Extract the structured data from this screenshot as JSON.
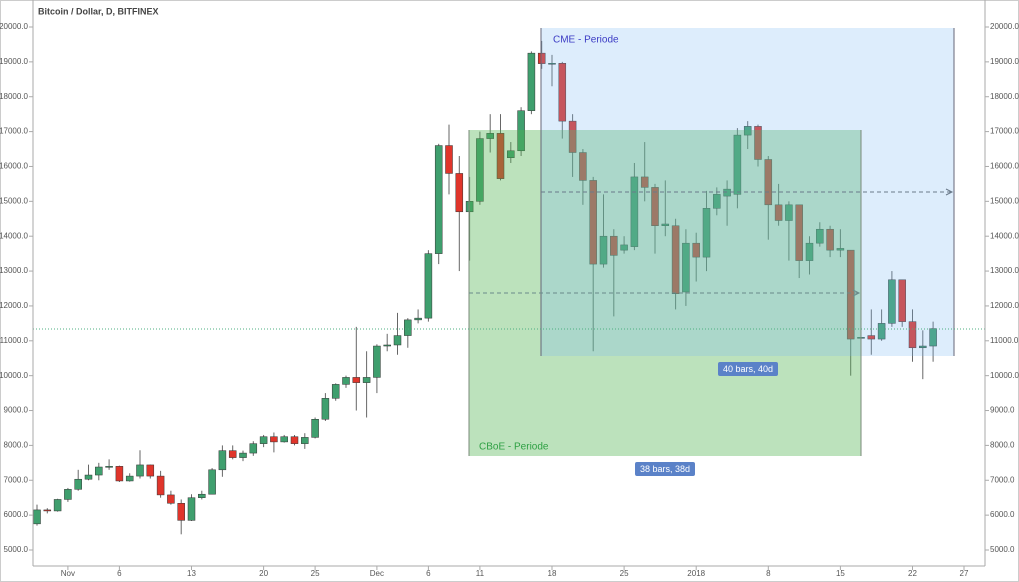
{
  "chart_data": {
    "type": "candlestick",
    "title": "Bitcoin / Dollar, D, BITFINEX",
    "up_color": "#3f9f6e",
    "down_color": "#e0352b",
    "categories": [
      null,
      null,
      null,
      "Nov",
      null,
      null,
      null,
      null,
      "6",
      null,
      null,
      null,
      null,
      null,
      null,
      "13",
      null,
      null,
      null,
      null,
      null,
      null,
      "20",
      null,
      null,
      null,
      null,
      "25",
      null,
      null,
      null,
      null,
      null,
      "Dec",
      null,
      null,
      null,
      null,
      "6",
      null,
      null,
      null,
      null,
      "11",
      null,
      null,
      null,
      null,
      null,
      null,
      "18",
      null,
      null,
      null,
      null,
      null,
      null,
      "25",
      null,
      null,
      null,
      null,
      null,
      null,
      "2018",
      null,
      null,
      null,
      null,
      null,
      null,
      "8",
      null,
      null,
      null,
      null,
      null,
      null,
      "15",
      null,
      null,
      null,
      null,
      null,
      null,
      "22",
      null,
      null,
      null,
      null,
      "27"
    ],
    "open": [
      5750,
      6150,
      6120,
      6450,
      6740,
      7030,
      7150,
      7380,
      7400,
      6980,
      7120,
      7440,
      7120,
      6580,
      6340,
      5850,
      6500,
      6600,
      7300,
      7850,
      7650,
      7780,
      8050,
      8250,
      8100,
      8250,
      8050,
      8230,
      8750,
      9350,
      9750,
      9950,
      9800,
      9950,
      10850,
      10880,
      11150,
      11600,
      11650,
      13500,
      16600,
      15800,
      14700,
      15000,
      16800,
      16950,
      16250,
      16450,
      17600,
      19250,
      18950,
      18960,
      17300,
      16400,
      15600,
      13200,
      14000,
      13600,
      13700,
      15700,
      15400,
      14300,
      14300,
      12400,
      13800,
      13400,
      14800,
      15150,
      15200,
      16900,
      17150,
      16200,
      14900,
      14450,
      14900,
      13300,
      13800,
      14200,
      13600,
      13600,
      11100,
      11150,
      11050,
      11500,
      12750,
      11550,
      10800,
      10850,
      null,
      null,
      null
    ],
    "high": [
      6300,
      6200,
      6470,
      6780,
      7300,
      7450,
      7500,
      7600,
      7420,
      7200,
      7860,
      7450,
      7270,
      6700,
      6450,
      6600,
      6700,
      7350,
      8000,
      8000,
      7850,
      8120,
      8300,
      8370,
      8300,
      8300,
      8350,
      8800,
      9500,
      9780,
      10000,
      11400,
      10700,
      10900,
      11200,
      11800,
      11650,
      11900,
      13600,
      16650,
      17200,
      16300,
      15700,
      17000,
      17500,
      17500,
      16700,
      17700,
      19300,
      19600,
      19200,
      19000,
      17500,
      16500,
      15700,
      15200,
      14200,
      14000,
      16100,
      16700,
      15500,
      15600,
      14500,
      14200,
      14100,
      15300,
      15400,
      15600,
      17100,
      17300,
      17200,
      16300,
      15500,
      15000,
      14900,
      14000,
      14400,
      14300,
      14200,
      13600,
      11500,
      11900,
      11900,
      13000,
      12750,
      11900,
      11300,
      11550,
      null,
      null,
      null
    ],
    "low": [
      5700,
      6050,
      6100,
      6380,
      6700,
      7000,
      7000,
      7300,
      6950,
      6960,
      7050,
      7050,
      6500,
      6300,
      5450,
      5830,
      6450,
      6600,
      7100,
      7600,
      7550,
      7700,
      7950,
      7800,
      8080,
      8000,
      7900,
      8200,
      8700,
      9280,
      9650,
      9000,
      8800,
      9500,
      10700,
      10600,
      10800,
      11500,
      11550,
      13200,
      15200,
      13000,
      13300,
      14900,
      16400,
      15600,
      16100,
      16300,
      17500,
      18800,
      18300,
      16800,
      15700,
      14900,
      10700,
      13100,
      11700,
      13500,
      13600,
      15000,
      13500,
      14000,
      11900,
      12000,
      12700,
      13000,
      14600,
      14300,
      14800,
      16500,
      16000,
      13900,
      14300,
      13300,
      12800,
      12900,
      13700,
      13400,
      13400,
      10000,
      10400,
      10600,
      11000,
      11400,
      11400,
      10400,
      9900,
      10400,
      null,
      null,
      null
    ],
    "close": [
      6150,
      6120,
      6450,
      6740,
      7030,
      7150,
      7380,
      7400,
      6980,
      7120,
      7440,
      7120,
      6580,
      6340,
      5850,
      6500,
      6600,
      7300,
      7850,
      7650,
      7780,
      8050,
      8250,
      8100,
      8250,
      8050,
      8230,
      8750,
      9350,
      9750,
      9950,
      9800,
      9950,
      10850,
      10880,
      11150,
      11600,
      11650,
      13500,
      16600,
      15800,
      14700,
      15000,
      16800,
      16950,
      15650,
      16450,
      17600,
      19250,
      18950,
      18960,
      17300,
      16400,
      15600,
      13200,
      14000,
      13450,
      13750,
      15700,
      15400,
      14300,
      14350,
      12350,
      13800,
      13400,
      14800,
      15200,
      15350,
      16900,
      17150,
      16200,
      14900,
      14450,
      14900,
      13300,
      13800,
      14200,
      13600,
      13650,
      11050,
      11100,
      11050,
      11500,
      12750,
      11550,
      10800,
      10850,
      11350,
      null,
      null,
      null
    ],
    "ylim": [
      5000,
      20000
    ],
    "yticks": [
      {
        "value": 5000,
        "label": "5000.0"
      },
      {
        "value": 6000,
        "label": "6000.0"
      },
      {
        "value": 7000,
        "label": "7000.0"
      },
      {
        "value": 8000,
        "label": "8000.0"
      },
      {
        "value": 9000,
        "label": "9000.0"
      },
      {
        "value": 10000,
        "label": "10000.0"
      },
      {
        "value": 11000,
        "label": "11000.0"
      },
      {
        "value": 12000,
        "label": "12000.0"
      },
      {
        "value": 13000,
        "label": "13000.0"
      },
      {
        "value": 14000,
        "label": "14000.0"
      },
      {
        "value": 15000,
        "label": "15000.0"
      },
      {
        "value": 16000,
        "label": "16000.0"
      },
      {
        "value": 17000,
        "label": "17000.0"
      },
      {
        "value": 18000,
        "label": "18000.0"
      },
      {
        "value": 19000,
        "label": "19000.0"
      },
      {
        "value": 20000,
        "label": "20000.0"
      }
    ],
    "annotations": [
      "CME - Periode",
      "CBoE - Periode",
      "40 bars, 40d",
      "38 bars, 38d"
    ]
  }
}
